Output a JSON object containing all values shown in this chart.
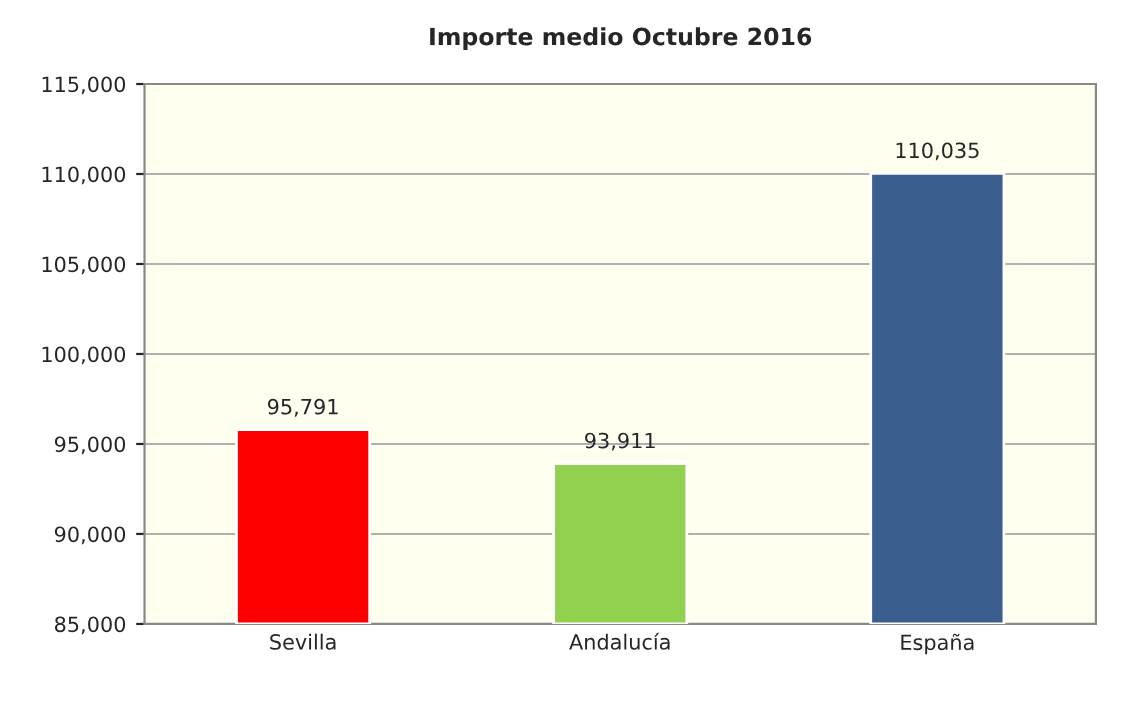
{
  "chart_data": {
    "type": "bar",
    "title": "Importe medio Octubre 2016",
    "categories": [
      "Sevilla",
      "Andalucía",
      "España"
    ],
    "values": [
      95791,
      93911,
      110035
    ],
    "colors": [
      "#ff0000",
      "#92d050",
      "#3a5f8f"
    ],
    "value_labels": [
      "95,791",
      "93,911",
      "110,035"
    ],
    "ylim": [
      85000,
      115000
    ],
    "yticks": [
      {
        "value": 85000,
        "label": "85,000"
      },
      {
        "value": 90000,
        "label": "90,000"
      },
      {
        "value": 95000,
        "label": "95,000"
      },
      {
        "value": 100000,
        "label": "100,000"
      },
      {
        "value": 105000,
        "label": "105,000"
      },
      {
        "value": 110000,
        "label": "110,000"
      },
      {
        "value": 115000,
        "label": "115,000"
      }
    ],
    "grid": "y"
  }
}
